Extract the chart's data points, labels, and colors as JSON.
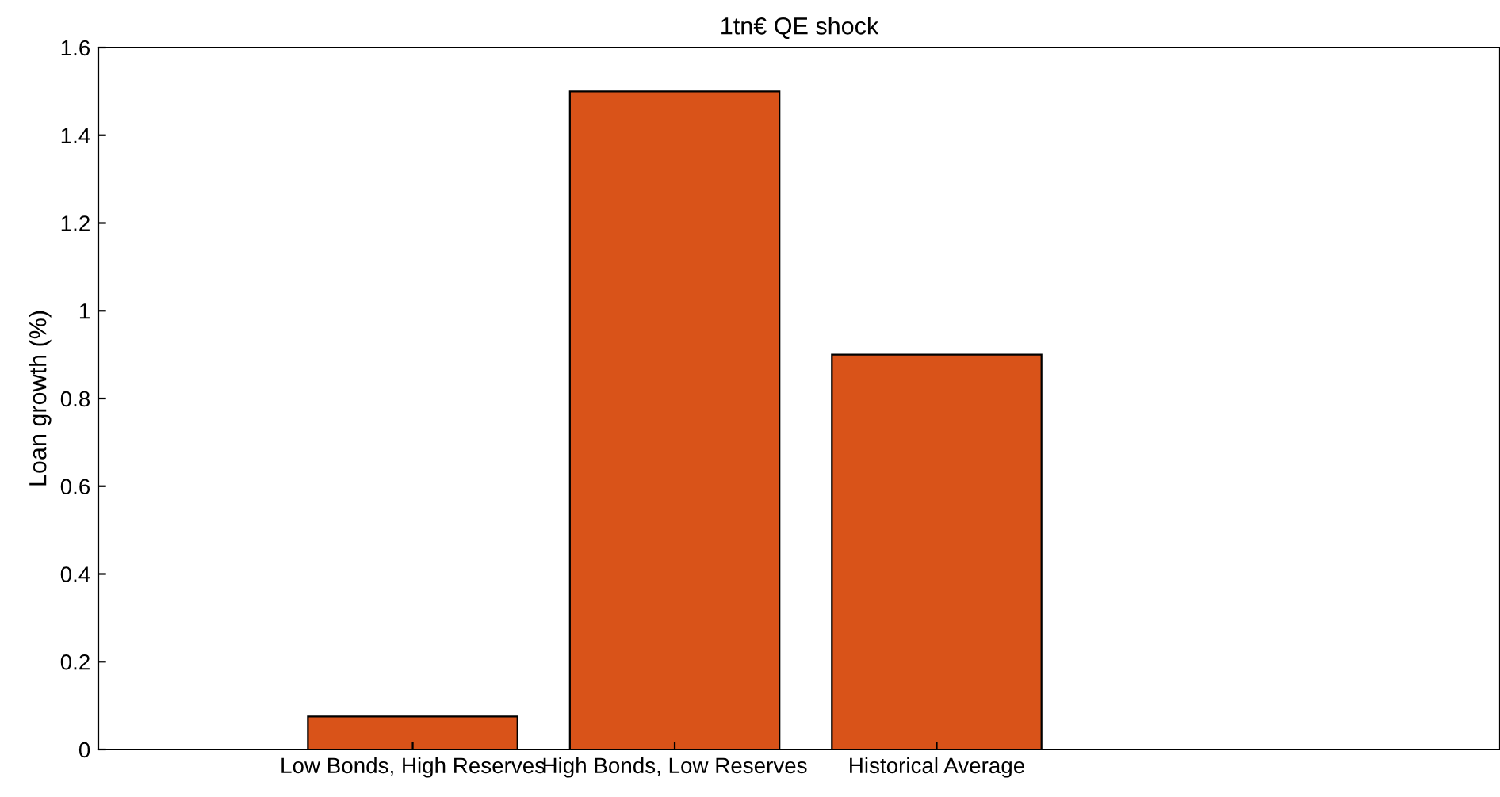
{
  "chart_data": {
    "type": "bar",
    "title": "1tn€ QE shock",
    "ylabel": "Loan growth (%)",
    "categories": [
      "Low Bonds, High Reserves",
      "High Bonds, Low Reserves",
      "Historical Average"
    ],
    "values": [
      0.075,
      1.5,
      0.9
    ],
    "color": "#d95319",
    "ylim": [
      0,
      1.6
    ],
    "yticks": [
      0,
      0.2,
      0.4,
      0.6,
      0.8,
      1,
      1.2,
      1.4,
      1.6
    ],
    "grid": false
  }
}
